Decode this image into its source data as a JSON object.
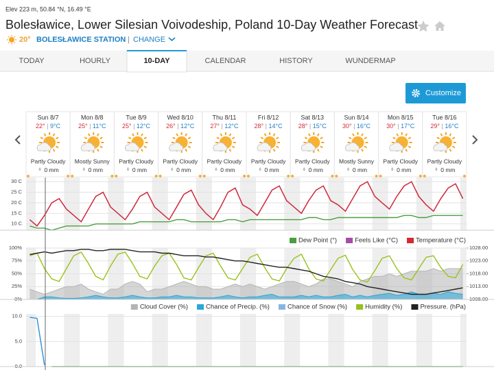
{
  "header": {
    "elevation": "Elev 223 m, 50.84 °N, 16.49 °E",
    "title": "Bolesławice, Lower Silesian Voivodeship, Poland 10-Day Weather Forecast",
    "current_temp": "20°",
    "station": "BOLESŁAWICE STATION",
    "change": "CHANGE"
  },
  "tabs": [
    "TODAY",
    "HOURLY",
    "10-DAY",
    "CALENDAR",
    "HISTORY",
    "WUNDERMAP"
  ],
  "active_tab": 2,
  "customize": "Customize",
  "days": [
    {
      "day": "Sun 8/7",
      "high": "22°",
      "low": "9°C",
      "condition": "Partly Cloudy",
      "precip": "0 mm"
    },
    {
      "day": "Mon 8/8",
      "high": "25°",
      "low": "11°C",
      "condition": "Mostly Sunny",
      "precip": "0 mm"
    },
    {
      "day": "Tue 8/9",
      "high": "25°",
      "low": "12°C",
      "condition": "Partly Cloudy",
      "precip": "0 mm"
    },
    {
      "day": "Wed 8/10",
      "high": "26°",
      "low": "12°C",
      "condition": "Partly Cloudy",
      "precip": "0 mm"
    },
    {
      "day": "Thu 8/11",
      "high": "27°",
      "low": "12°C",
      "condition": "Partly Cloudy",
      "precip": "0 mm"
    },
    {
      "day": "Fri 8/12",
      "high": "28°",
      "low": "14°C",
      "condition": "Partly Cloudy",
      "precip": "0 mm"
    },
    {
      "day": "Sat 8/13",
      "high": "28°",
      "low": "15°C",
      "condition": "Partly Cloudy",
      "precip": "0 mm"
    },
    {
      "day": "Sun 8/14",
      "high": "30°",
      "low": "16°C",
      "condition": "Mostly Sunny",
      "precip": "0 mm"
    },
    {
      "day": "Mon 8/15",
      "high": "30°",
      "low": "17°C",
      "condition": "Partly Cloudy",
      "precip": "0 mm"
    },
    {
      "day": "Tue 8/16",
      "high": "29°",
      "low": "16°C",
      "condition": "Partly Cloudy",
      "precip": "0 mm"
    }
  ],
  "chart_data": [
    {
      "type": "line",
      "grid": true,
      "categories": [
        null,
        null,
        null,
        null,
        null,
        null,
        null,
        null,
        null,
        null,
        null,
        null,
        null,
        null,
        null,
        null,
        null,
        null,
        null,
        null,
        null,
        null,
        null,
        null,
        null,
        null,
        null,
        null,
        null,
        null,
        null,
        null,
        null,
        null,
        null,
        null,
        null,
        null,
        null,
        null,
        null,
        null,
        null,
        null,
        null,
        null,
        null,
        null,
        null,
        null,
        null,
        null,
        null,
        null,
        null,
        null,
        null,
        null,
        null,
        null
      ],
      "ylim": [
        7,
        32
      ],
      "yticks": [
        {
          "value": 10,
          "label": "10 C"
        },
        {
          "value": 15,
          "label": "15 C"
        },
        {
          "value": 20,
          "label": "20 C"
        },
        {
          "value": 25,
          "label": "25 C"
        },
        {
          "value": 30,
          "label": "30 C"
        }
      ],
      "series": [
        {
          "name": "Dew Point (°)",
          "color": "#4a9e3f",
          "values": [
            9,
            8,
            8,
            7,
            8,
            9,
            9,
            9,
            9,
            10,
            10,
            10,
            10,
            10,
            10,
            11,
            11,
            11,
            11,
            11,
            12,
            12,
            11,
            11,
            11,
            11,
            11,
            12,
            12,
            11,
            12,
            12,
            12,
            12,
            12,
            12,
            12,
            12,
            13,
            13,
            12,
            12,
            13,
            13,
            13,
            13,
            13,
            13,
            13,
            13,
            13,
            14,
            14,
            13,
            13,
            14,
            14,
            14,
            14,
            14
          ]
        },
        {
          "name": "Feels Like (°C)",
          "color": "#a64ca6",
          "values": [
            12,
            9,
            14,
            20,
            22,
            17,
            14,
            11,
            17,
            23,
            25,
            18,
            15,
            12,
            17,
            23,
            25,
            18,
            15,
            12,
            18,
            24,
            26,
            19,
            15,
            12,
            18,
            25,
            27,
            19,
            17,
            14,
            20,
            26,
            28,
            21,
            18,
            15,
            21,
            26,
            28,
            21,
            19,
            16,
            22,
            28,
            30,
            23,
            20,
            17,
            23,
            28,
            30,
            23,
            19,
            16,
            22,
            27,
            29,
            22
          ]
        },
        {
          "name": "Temperature (°C)",
          "color": "#d42a35",
          "values": [
            12,
            9,
            14,
            20,
            22,
            17,
            14,
            11,
            17,
            23,
            25,
            18,
            15,
            12,
            17,
            23,
            25,
            18,
            15,
            12,
            18,
            24,
            26,
            19,
            15,
            12,
            18,
            25,
            27,
            19,
            17,
            14,
            20,
            26,
            28,
            21,
            18,
            15,
            21,
            26,
            28,
            21,
            19,
            16,
            22,
            28,
            30,
            23,
            20,
            17,
            23,
            28,
            30,
            23,
            19,
            16,
            22,
            27,
            29,
            22
          ]
        }
      ]
    },
    {
      "type": "line",
      "grid": true,
      "categories": [
        null,
        null,
        null,
        null,
        null,
        null,
        null,
        null,
        null,
        null,
        null,
        null,
        null,
        null,
        null,
        null,
        null,
        null,
        null,
        null,
        null,
        null,
        null,
        null,
        null,
        null,
        null,
        null,
        null,
        null,
        null,
        null,
        null,
        null,
        null,
        null,
        null,
        null,
        null,
        null,
        null,
        null,
        null,
        null,
        null,
        null,
        null,
        null,
        null,
        null,
        null,
        null,
        null,
        null,
        null,
        null,
        null,
        null,
        null,
        null
      ],
      "ylim": [
        0,
        100
      ],
      "yticks": [
        {
          "value": 0,
          "label": "0%"
        },
        {
          "value": 25,
          "label": "25%"
        },
        {
          "value": 50,
          "label": "50%"
        },
        {
          "value": 75,
          "label": "75%"
        },
        {
          "value": 100,
          "label": "100%"
        }
      ],
      "y2lim": [
        1008,
        1028
      ],
      "y2ticks": [
        {
          "value": 1008,
          "label": "1008.00"
        },
        {
          "value": 1013,
          "label": "1013.00"
        },
        {
          "value": 1018,
          "label": "1018.00"
        },
        {
          "value": 1023,
          "label": "1023.00"
        },
        {
          "value": 1028,
          "label": "1028.00"
        }
      ],
      "series": [
        {
          "name": "Cloud Cover (%)",
          "color": "#b4b4b4",
          "area": true,
          "values": [
            20,
            15,
            10,
            15,
            20,
            25,
            25,
            30,
            20,
            15,
            10,
            20,
            20,
            30,
            35,
            30,
            15,
            20,
            20,
            25,
            30,
            35,
            30,
            25,
            25,
            20,
            20,
            25,
            30,
            25,
            30,
            25,
            20,
            25,
            30,
            35,
            35,
            30,
            25,
            30,
            40,
            40,
            35,
            30,
            25,
            35,
            40,
            45,
            45,
            50,
            45,
            50,
            55,
            55,
            55,
            60,
            55,
            60,
            60,
            60
          ]
        },
        {
          "name": "Chance of Precip. (%)",
          "color": "#2aa6d8",
          "area": true,
          "values": [
            0,
            0,
            5,
            5,
            3,
            2,
            2,
            3,
            5,
            8,
            5,
            3,
            3,
            5,
            8,
            5,
            3,
            3,
            5,
            5,
            8,
            5,
            5,
            3,
            3,
            3,
            5,
            8,
            5,
            3,
            5,
            5,
            8,
            10,
            5,
            5,
            5,
            8,
            5,
            8,
            5,
            5,
            8,
            10,
            5,
            8,
            5,
            8,
            10,
            12,
            8,
            10,
            15,
            10,
            10,
            12,
            10,
            15,
            12,
            10
          ]
        },
        {
          "name": "Chance of Snow (%)",
          "color": "#8ab4e6",
          "area": true,
          "values": [
            0,
            0,
            0,
            0,
            0,
            0,
            0,
            0,
            0,
            0,
            0,
            0,
            0,
            0,
            0,
            0,
            0,
            0,
            0,
            0,
            0,
            0,
            0,
            0,
            0,
            0,
            0,
            0,
            0,
            0,
            0,
            0,
            0,
            0,
            0,
            0,
            0,
            0,
            0,
            0,
            0,
            0,
            0,
            0,
            0,
            0,
            0,
            0,
            0,
            0,
            0,
            0,
            0,
            0,
            0,
            0,
            0,
            0,
            0,
            0
          ]
        },
        {
          "name": "Humidity (%)",
          "color": "#97c21a",
          "values": [
            85,
            90,
            60,
            40,
            35,
            60,
            85,
            92,
            70,
            45,
            38,
            65,
            88,
            92,
            70,
            45,
            40,
            65,
            85,
            90,
            68,
            42,
            38,
            62,
            85,
            90,
            65,
            42,
            38,
            60,
            82,
            88,
            62,
            40,
            36,
            60,
            80,
            88,
            60,
            40,
            36,
            58,
            80,
            86,
            58,
            38,
            34,
            56,
            80,
            85,
            60,
            42,
            38,
            60,
            82,
            85,
            62,
            45,
            42,
            68
          ]
        },
        {
          "name": "Pressure. (hPa)",
          "color": "#222222",
          "axis": "y2",
          "values": [
            1025.5,
            1026,
            1026.5,
            1026,
            1026.5,
            1027,
            1027,
            1027.5,
            1027.5,
            1027,
            1027,
            1027.5,
            1027.5,
            1027.5,
            1027,
            1026.5,
            1026.5,
            1026.5,
            1026,
            1026,
            1025.5,
            1025,
            1025,
            1025,
            1024.5,
            1024.5,
            1024,
            1023.5,
            1023,
            1023,
            1022.5,
            1022,
            1021.5,
            1021,
            1020.5,
            1020.5,
            1020,
            1019.5,
            1019,
            1018,
            1017,
            1016.5,
            1016,
            1015,
            1014.5,
            1014,
            1013,
            1012.5,
            1012,
            1011.5,
            1011,
            1010.5,
            1010,
            1010,
            1010,
            1010.5,
            1011,
            1011.5,
            1012,
            1012.5
          ]
        }
      ]
    },
    {
      "type": "line",
      "grid": true,
      "categories": [
        null,
        null,
        null,
        null,
        null,
        null,
        null,
        null,
        null,
        null,
        null,
        null,
        null,
        null,
        null,
        null,
        null,
        null,
        null,
        null,
        null,
        null,
        null,
        null,
        null,
        null,
        null,
        null,
        null,
        null,
        null,
        null,
        null,
        null,
        null,
        null,
        null,
        null,
        null,
        null,
        null,
        null,
        null,
        null,
        null,
        null,
        null,
        null,
        null,
        null,
        null,
        null,
        null,
        null,
        null,
        null,
        null,
        null,
        null,
        null
      ],
      "ylim": [
        0,
        10.5
      ],
      "yticks": [
        {
          "value": 0,
          "label": "0.0"
        },
        {
          "value": 5,
          "label": "5.0"
        },
        {
          "value": 10,
          "label": "10.0"
        }
      ],
      "series": [
        {
          "color": "#2a8fd8",
          "values": [
            9.8,
            9.6,
            0.3,
            null,
            null,
            null,
            null,
            null,
            null,
            null,
            null,
            null,
            null,
            null,
            null,
            null,
            null,
            null,
            null,
            null,
            null,
            null,
            null,
            null,
            null,
            null,
            null,
            null,
            null,
            null,
            null,
            null,
            null,
            null,
            null,
            null,
            null,
            null,
            null,
            null,
            null,
            null,
            null,
            null,
            null,
            null,
            null,
            null,
            null,
            null,
            null,
            null,
            null,
            null,
            null,
            null,
            null,
            null,
            null,
            null
          ]
        },
        {
          "color": "#3a9a3a",
          "values": [
            null,
            null,
            null,
            0,
            0,
            0,
            0,
            0,
            0,
            0,
            0,
            0,
            0,
            0,
            0,
            0,
            0,
            0,
            0,
            0,
            0,
            0,
            0,
            0,
            0,
            0,
            0,
            0,
            0,
            0,
            0,
            0,
            0,
            0,
            0,
            0,
            0,
            0,
            0,
            0,
            0,
            0,
            0,
            0,
            0,
            0,
            0,
            0,
            0,
            0,
            0,
            0,
            0,
            0,
            0,
            0,
            0,
            0,
            0,
            0
          ]
        }
      ]
    }
  ]
}
